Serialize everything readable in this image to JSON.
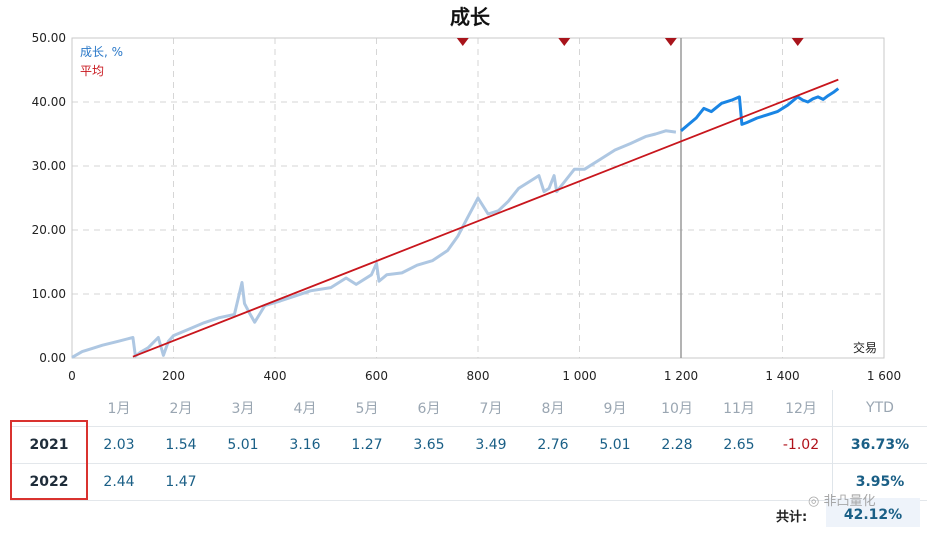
{
  "chart_data": {
    "type": "line",
    "title": "成长",
    "xlim": [
      0,
      1600
    ],
    "ylim": [
      0,
      50
    ],
    "x_ticks": [
      "0",
      "200",
      "400",
      "600",
      "800",
      "1 000",
      "1 200",
      "1 400",
      "1 600"
    ],
    "y_ticks": [
      "0.00",
      "10.00",
      "20.00",
      "30.00",
      "40.00",
      "50.00"
    ],
    "x_tick_values": [
      0,
      200,
      400,
      600,
      800,
      1000,
      1200,
      1400,
      1600
    ],
    "y_tick_values": [
      0,
      10,
      20,
      30,
      40,
      50
    ],
    "xlabel_corner": "交易",
    "grid": true,
    "legend_position": "top-left",
    "divider_x": 1200,
    "markers_x": [
      770,
      970,
      1180,
      1430
    ],
    "series": [
      {
        "name": "成长, %",
        "color": "#aec7e2",
        "x": [
          0,
          20,
          40,
          60,
          90,
          120,
          125,
          135,
          150,
          170,
          180,
          190,
          200,
          230,
          260,
          290,
          320,
          335,
          340,
          350,
          360,
          380,
          410,
          440,
          470,
          510,
          540,
          560,
          590,
          600,
          605,
          620,
          650,
          680,
          710,
          740,
          760,
          780,
          800,
          820,
          840,
          860,
          880,
          900,
          920,
          930,
          940,
          950,
          955,
          970,
          990,
          1010,
          1040,
          1070,
          1100,
          1130,
          1150,
          1170,
          1190
        ],
        "y": [
          0.1,
          1,
          1.5,
          2,
          2.6,
          3.2,
          0.3,
          0.9,
          1.6,
          3.2,
          0.4,
          2.6,
          3.5,
          4.5,
          5.5,
          6.3,
          6.8,
          11.8,
          8.5,
          7,
          5.6,
          8.2,
          8.9,
          9.7,
          10.5,
          11,
          12.5,
          11.5,
          13,
          14.8,
          12,
          13,
          13.3,
          14.5,
          15.2,
          16.8,
          19,
          22,
          25,
          22.5,
          23,
          24.5,
          26.5,
          27.5,
          28.5,
          26,
          26.5,
          28.5,
          26,
          27.5,
          29.5,
          29.5,
          31,
          32.5,
          33.5,
          34.6,
          35,
          35.5,
          35.3
        ]
      },
      {
        "name": "",
        "color": "#1a85e4",
        "x": [
          1200,
          1215,
          1230,
          1245,
          1260,
          1280,
          1300,
          1315,
          1320,
          1330,
          1350,
          1370,
          1390,
          1410,
          1430,
          1440,
          1450,
          1460,
          1470,
          1480,
          1490,
          1500,
          1510
        ],
        "y": [
          35.5,
          36.5,
          37.5,
          39,
          38.5,
          39.8,
          40.3,
          40.8,
          36.5,
          36.8,
          37.5,
          38,
          38.5,
          39.5,
          40.8,
          40.3,
          40,
          40.5,
          40.8,
          40.4,
          41,
          41.5,
          42.1
        ]
      },
      {
        "name": "平均",
        "color": "#c8161d",
        "x": [
          120,
          1510
        ],
        "y": [
          0.2,
          43.5
        ]
      }
    ]
  },
  "table": {
    "month_headers": [
      "1月",
      "2月",
      "3月",
      "4月",
      "5月",
      "6月",
      "7月",
      "8月",
      "9月",
      "10月",
      "11月",
      "12月"
    ],
    "ytd_header": "YTD",
    "rows": [
      {
        "year": "2021",
        "values": [
          "2.03",
          "1.54",
          "5.01",
          "3.16",
          "1.27",
          "3.65",
          "3.49",
          "2.76",
          "5.01",
          "2.28",
          "2.65",
          "-1.02"
        ],
        "ytd": "36.73%"
      },
      {
        "year": "2022",
        "values": [
          "2.44",
          "1.47",
          "",
          "",
          "",
          "",
          "",
          "",
          "",
          "",
          "",
          ""
        ],
        "ytd": "3.95%"
      }
    ],
    "total_label": "共计:",
    "total_value": "42.12%"
  },
  "watermark": "非凸量化",
  "colors": {
    "accent_blue": "#1a85e4",
    "light_blue": "#aec7e2",
    "red_line": "#c8161d",
    "highlight_box": "#d9322f"
  }
}
